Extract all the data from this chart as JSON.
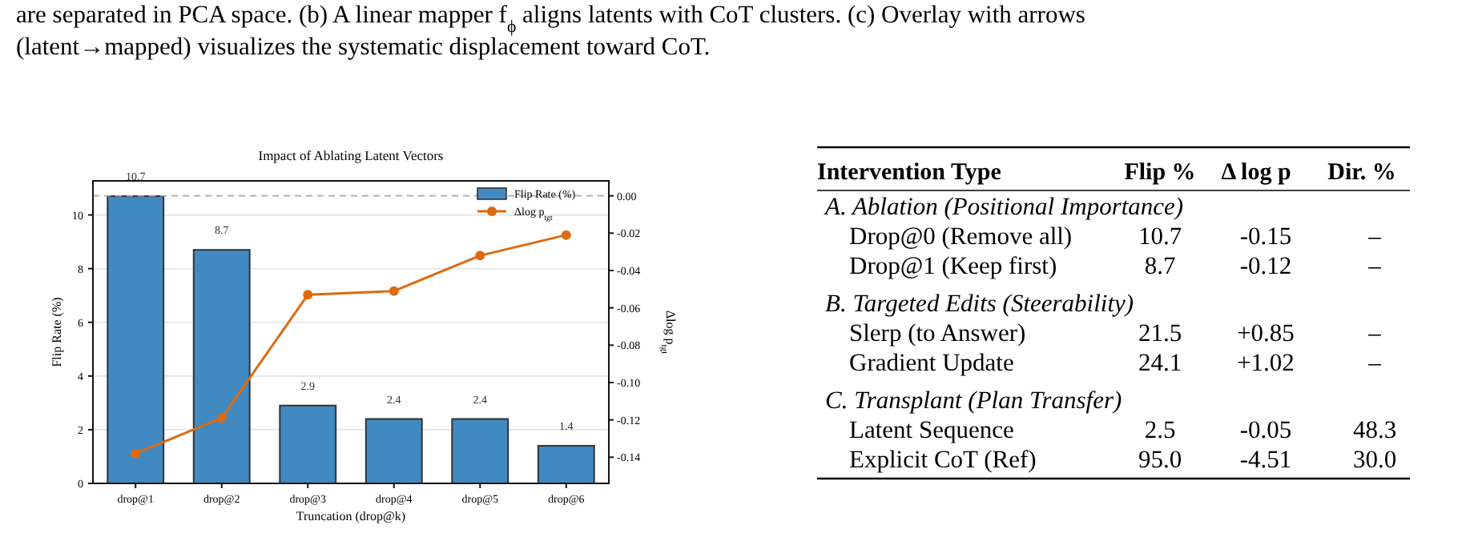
{
  "chart_data": [
    {
      "type": "bar",
      "title": "Impact of Ablating Latent Vectors",
      "xlabel": "Truncation (drop@k)",
      "ylabel": "Flip Rate (%)",
      "y2label": "Δlog p$_{tgt}$",
      "categories": [
        "drop@1",
        "drop@2",
        "drop@3",
        "drop@4",
        "drop@5",
        "drop@6"
      ],
      "series": [
        {
          "name": "Flip Rate (%)",
          "color": "#4189c1",
          "values": [
            10.7,
            8.7,
            2.9,
            2.4,
            2.4,
            1.4
          ],
          "value_labels": [
            "10.7",
            "8.7",
            "2.9",
            "2.4",
            "2.4",
            "1.4"
          ]
        },
        {
          "type": "line",
          "name": "Δlog p$_{tgt}$",
          "color": "#dd6a10",
          "axis": "y2",
          "marker": "circle",
          "values": [
            -0.138,
            -0.119,
            -0.053,
            -0.051,
            -0.032,
            -0.021
          ]
        }
      ],
      "ylim": [
        0,
        11.27
      ],
      "yticks": [
        0,
        2,
        4,
        6,
        8,
        10
      ],
      "y2lim": [
        -0.154,
        0.008
      ],
      "y2ticks": [
        {
          "value": 0,
          "label": "0.00"
        },
        {
          "value": -0.02,
          "label": "-0.02"
        },
        {
          "value": -0.04,
          "label": "-0.04"
        },
        {
          "value": -0.06,
          "label": "-0.06"
        },
        {
          "value": -0.08,
          "label": "-0.08"
        },
        {
          "value": -0.1,
          "label": "-0.10"
        },
        {
          "value": -0.12,
          "label": "-0.12"
        },
        {
          "value": -0.14,
          "label": "-0.14"
        }
      ],
      "grid": "y",
      "legend": "top right",
      "ref_lines": [
        {
          "axis": "y2",
          "value": 0,
          "color": "#aaaaaa",
          "line_style": "dashed"
        }
      ],
      "annotations": [
        "are separated in PCA space. (b) A linear mapper f$_{ϕ}$ aligns latents with CoT clusters. (c) Overlay with arrows",
        "(latent→mapped) visualizes the systematic displacement toward CoT."
      ]
    },
    {
      "type": "other",
      "xlabel": "Intervention Type",
      "categories": [
        "A. Ablation (Positional Importance)",
        "Drop@0 (Remove all)",
        "Drop@1 (Keep first)",
        "B. Targeted Edits (Steerability)",
        "Slerp (to Answer)",
        "Gradient Update",
        "C. Transplant (Plan Transfer)",
        "Latent Sequence",
        "Explicit CoT (Ref)"
      ],
      "series": [
        {
          "name": "Flip %",
          "values": [
            null,
            10.7,
            8.7,
            null,
            21.5,
            24.1,
            null,
            2.5,
            95.0
          ],
          "value_labels": [
            null,
            "10.7",
            "8.7",
            null,
            "21.5",
            "24.1",
            null,
            "2.5",
            "95.0"
          ]
        },
        {
          "name": "Δ log p",
          "values": [
            null,
            -0.15,
            -0.12,
            null,
            0.85,
            1.02,
            null,
            -0.05,
            -4.51
          ],
          "value_labels": [
            null,
            "-0.15",
            "-0.12",
            null,
            "+0.85",
            "+1.02",
            null,
            "-0.05",
            "-4.51"
          ]
        },
        {
          "name": "Dir. %",
          "values": [
            null,
            null,
            null,
            null,
            null,
            null,
            null,
            48.3,
            30.0
          ],
          "value_labels": [
            null,
            "–",
            "–",
            null,
            "–",
            "–",
            null,
            "48.3",
            "30.0"
          ]
        }
      ]
    }
  ]
}
